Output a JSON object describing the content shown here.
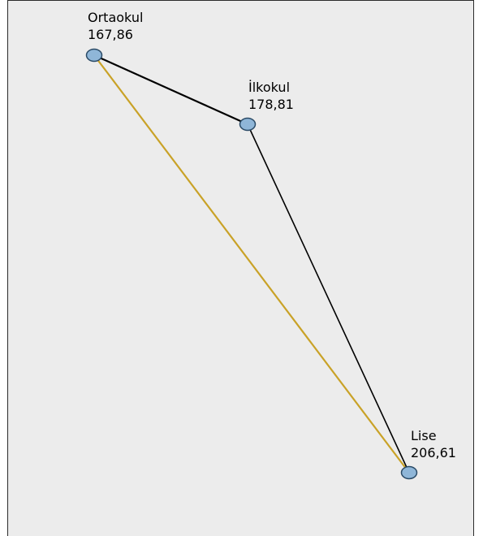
{
  "diagram": {
    "nodes": [
      {
        "id": "ortaokul",
        "name": "Ortaokul",
        "value": "167,86"
      },
      {
        "id": "ilkokul",
        "name": "İlkokul",
        "value": "178,81"
      },
      {
        "id": "lise",
        "name": "Lise",
        "value": "206,61"
      }
    ],
    "edges": [
      {
        "from": "ortaokul",
        "to": "ilkokul",
        "color": "#000000"
      },
      {
        "from": "ilkokul",
        "to": "lise",
        "color": "#000000"
      },
      {
        "from": "ortaokul",
        "to": "lise",
        "color": "#c9a227"
      }
    ],
    "node_fill": "#8fb6d8",
    "node_stroke": "#2a4a66",
    "background": "#ececec"
  }
}
